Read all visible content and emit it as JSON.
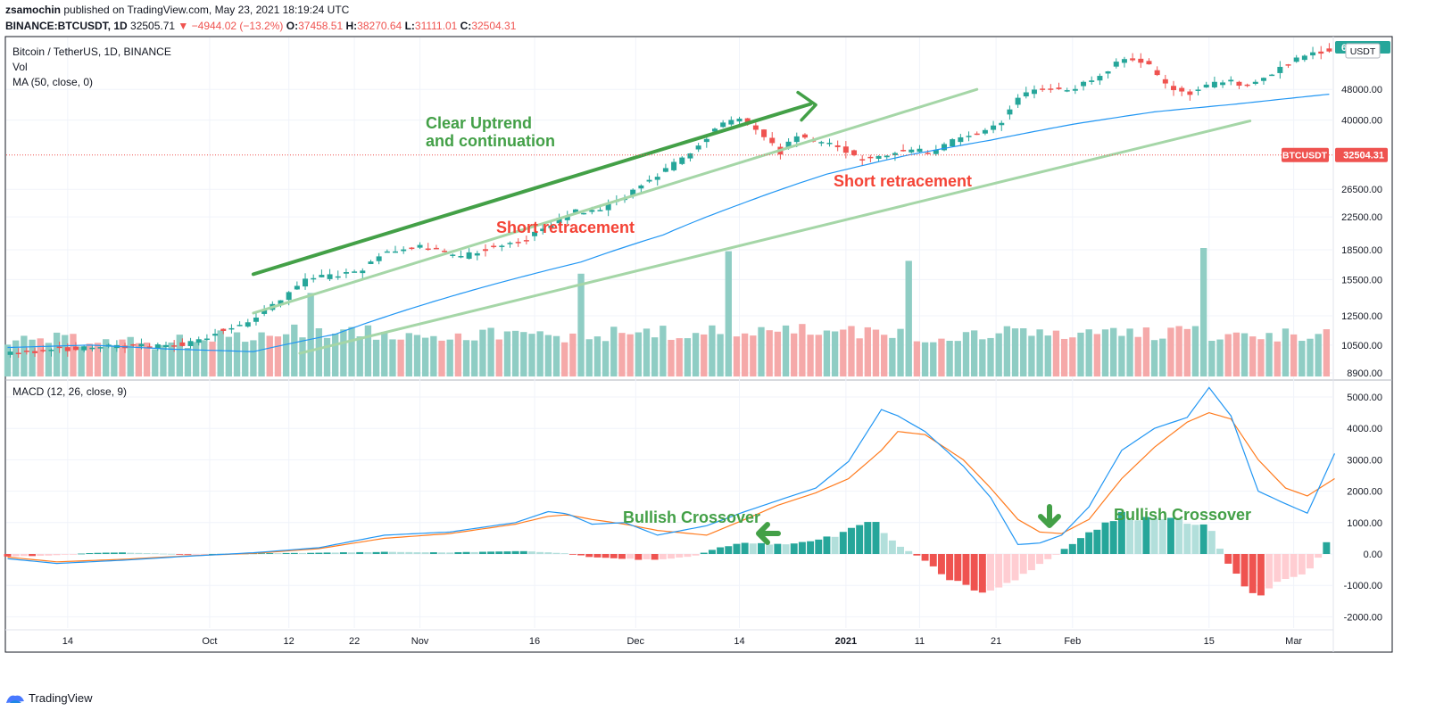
{
  "header": {
    "author": "zsamochin",
    "published_text": "published on TradingView.com, May 23, 2021 18:19:24 UTC",
    "symbol_line": "BINANCE:BTCUSDT, 1D",
    "last": "32505.71",
    "change": "−4944.02 (−13.2%)",
    "o_label": "O:",
    "o": "37458.51",
    "h_label": "H:",
    "h": "38270.64",
    "l_label": "L:",
    "l": "31111.01",
    "c_label": "C:",
    "c": "32504.31"
  },
  "footer": {
    "brand": "TradingView"
  },
  "chart_data": {
    "type": "candlestick",
    "title": "Bitcoin / TetherUS, 1D, BINANCE",
    "legend": [
      "Vol",
      "MA (50, close, 0)"
    ],
    "currency_badge": "USDT",
    "price_axis": {
      "scale": "log",
      "ticks": [
        "48000.00",
        "40000.00",
        "32504.31",
        "26500.00",
        "22500.00",
        "18500.00",
        "15500.00",
        "12500.00",
        "10500.00",
        "8900.00"
      ]
    },
    "last_price_label": {
      "symbol": "BTCUSDT",
      "price": "32504.31",
      "top_badge": "6"
    },
    "x_ticks": [
      "14",
      "Oct",
      "12",
      "22",
      "Nov",
      "16",
      "Dec",
      "14",
      "2021",
      "11",
      "21",
      "Feb",
      "15",
      "Mar"
    ],
    "price_path": [
      [
        0,
        10000
      ],
      [
        18,
        10250
      ],
      [
        30,
        10300
      ],
      [
        45,
        10450
      ],
      [
        55,
        10400
      ],
      [
        68,
        10600
      ],
      [
        78,
        11400
      ],
      [
        88,
        11900
      ],
      [
        96,
        13000
      ],
      [
        102,
        13800
      ],
      [
        110,
        15500
      ],
      [
        118,
        15800
      ],
      [
        130,
        16300
      ],
      [
        138,
        18300
      ],
      [
        148,
        18800
      ],
      [
        158,
        18800
      ],
      [
        166,
        17500
      ],
      [
        172,
        18200
      ],
      [
        180,
        19000
      ],
      [
        188,
        19300
      ],
      [
        198,
        21000
      ],
      [
        208,
        23200
      ],
      [
        218,
        23500
      ],
      [
        226,
        25000
      ],
      [
        234,
        27500
      ],
      [
        240,
        29000
      ],
      [
        250,
        32500
      ],
      [
        262,
        39000
      ],
      [
        270,
        40500
      ],
      [
        278,
        36500
      ],
      [
        284,
        33000
      ],
      [
        290,
        36500
      ],
      [
        298,
        35000
      ],
      [
        306,
        34000
      ],
      [
        312,
        32000
      ],
      [
        318,
        31500
      ],
      [
        326,
        33000
      ],
      [
        334,
        33500
      ],
      [
        340,
        33000
      ],
      [
        348,
        35500
      ],
      [
        356,
        37000
      ],
      [
        364,
        39000
      ],
      [
        372,
        46000
      ],
      [
        380,
        48500
      ],
      [
        390,
        48000
      ],
      [
        400,
        51000
      ],
      [
        408,
        56500
      ],
      [
        414,
        58000
      ],
      [
        420,
        54500
      ],
      [
        426,
        48500
      ],
      [
        434,
        46500
      ],
      [
        440,
        49000
      ],
      [
        448,
        50500
      ],
      [
        454,
        49000
      ],
      [
        462,
        52000
      ],
      [
        470,
        56000
      ],
      [
        478,
        59500
      ],
      [
        486,
        61000
      ]
    ],
    "ma50_path": [
      [
        0,
        10350
      ],
      [
        30,
        10500
      ],
      [
        60,
        10250
      ],
      [
        90,
        10100
      ],
      [
        120,
        11200
      ],
      [
        150,
        13200
      ],
      [
        180,
        15200
      ],
      [
        210,
        17200
      ],
      [
        240,
        20200
      ],
      [
        270,
        24500
      ],
      [
        300,
        29000
      ],
      [
        330,
        32500
      ],
      [
        360,
        35500
      ],
      [
        390,
        39000
      ],
      [
        420,
        42000
      ],
      [
        450,
        44000
      ],
      [
        486,
        46800
      ]
    ],
    "trendlines": [
      {
        "label": "Clear Uptrend and continuation",
        "color": "#43a047",
        "points": [
          [
            90,
            16000
          ],
          [
            294,
            44000
          ]
        ]
      },
      {
        "color": "#a5d6a7",
        "points": [
          [
            90,
            12700
          ],
          [
            355,
            48000
          ]
        ]
      },
      {
        "color": "#a5d6a7",
        "points": [
          [
            107,
            10000
          ],
          [
            455,
            39800
          ]
        ]
      }
    ],
    "volume_path": [
      [
        0,
        9
      ],
      [
        60,
        8
      ],
      [
        110,
        12
      ],
      [
        150,
        11
      ],
      [
        200,
        10
      ],
      [
        240,
        11
      ],
      [
        265,
        11
      ],
      [
        290,
        12
      ],
      [
        330,
        10
      ],
      [
        380,
        11
      ],
      [
        420,
        11
      ],
      [
        486,
        10
      ]
    ],
    "volume_spikes": [
      [
        111,
        26
      ],
      [
        209,
        32
      ],
      [
        264,
        39
      ],
      [
        329,
        36
      ],
      [
        372,
        15
      ],
      [
        437,
        40
      ]
    ],
    "macd": {
      "label": "MACD (12, 26, close, 9)",
      "axis_ticks": [
        "5000.00",
        "4000.00",
        "3000.00",
        "2000.00",
        "1000.00",
        "0.00",
        "-1000.00",
        "-2000.00"
      ],
      "macd_line": [
        [
          0,
          -150
        ],
        [
          18,
          -300
        ],
        [
          42,
          -200
        ],
        [
          66,
          -70
        ],
        [
          90,
          40
        ],
        [
          114,
          200
        ],
        [
          138,
          600
        ],
        [
          162,
          700
        ],
        [
          186,
          1000
        ],
        [
          198,
          1350
        ],
        [
          205,
          1280
        ],
        [
          214,
          950
        ],
        [
          226,
          1000
        ],
        [
          238,
          600
        ],
        [
          256,
          900
        ],
        [
          270,
          1350
        ],
        [
          282,
          1700
        ],
        [
          296,
          2100
        ],
        [
          308,
          2950
        ],
        [
          320,
          4600
        ],
        [
          326,
          4400
        ],
        [
          336,
          3900
        ],
        [
          350,
          2800
        ],
        [
          360,
          1800
        ],
        [
          370,
          300
        ],
        [
          378,
          350
        ],
        [
          386,
          600
        ],
        [
          396,
          1500
        ],
        [
          408,
          3300
        ],
        [
          420,
          4000
        ],
        [
          432,
          4350
        ],
        [
          440,
          5300
        ],
        [
          448,
          4400
        ],
        [
          458,
          2000
        ],
        [
          468,
          1600
        ],
        [
          476,
          1300
        ],
        [
          486,
          3200
        ]
      ],
      "signal_line": [
        [
          0,
          -100
        ],
        [
          18,
          -250
        ],
        [
          42,
          -170
        ],
        [
          66,
          -60
        ],
        [
          90,
          20
        ],
        [
          114,
          170
        ],
        [
          138,
          500
        ],
        [
          162,
          650
        ],
        [
          186,
          950
        ],
        [
          198,
          1200
        ],
        [
          205,
          1250
        ],
        [
          214,
          1100
        ],
        [
          226,
          950
        ],
        [
          238,
          750
        ],
        [
          256,
          600
        ],
        [
          270,
          1100
        ],
        [
          282,
          1550
        ],
        [
          296,
          1950
        ],
        [
          308,
          2400
        ],
        [
          320,
          3300
        ],
        [
          326,
          3900
        ],
        [
          336,
          3800
        ],
        [
          350,
          3000
        ],
        [
          360,
          2100
        ],
        [
          370,
          1100
        ],
        [
          378,
          700
        ],
        [
          386,
          650
        ],
        [
          396,
          1100
        ],
        [
          408,
          2400
        ],
        [
          420,
          3400
        ],
        [
          432,
          4200
        ],
        [
          440,
          4500
        ],
        [
          448,
          4300
        ],
        [
          458,
          3000
        ],
        [
          468,
          2100
        ],
        [
          476,
          1850
        ],
        [
          486,
          2400
        ]
      ],
      "histogram_path": [
        [
          0,
          -80
        ],
        [
          18,
          -40
        ],
        [
          30,
          30
        ],
        [
          42,
          50
        ],
        [
          66,
          -10
        ],
        [
          90,
          20
        ],
        [
          114,
          40
        ],
        [
          138,
          70
        ],
        [
          162,
          50
        ],
        [
          190,
          90
        ],
        [
          205,
          20
        ],
        [
          214,
          -100
        ],
        [
          238,
          -200
        ],
        [
          252,
          -50
        ],
        [
          260,
          200
        ],
        [
          270,
          350
        ],
        [
          282,
          300
        ],
        [
          296,
          420
        ],
        [
          306,
          650
        ],
        [
          316,
          1100
        ],
        [
          326,
          300
        ],
        [
          334,
          -100
        ],
        [
          344,
          -750
        ],
        [
          354,
          -1150
        ],
        [
          364,
          -1050
        ],
        [
          376,
          -450
        ],
        [
          386,
          100
        ],
        [
          396,
          650
        ],
        [
          408,
          1250
        ],
        [
          420,
          1050
        ],
        [
          432,
          1050
        ],
        [
          440,
          900
        ],
        [
          446,
          -200
        ],
        [
          456,
          -1350
        ],
        [
          466,
          -900
        ],
        [
          478,
          -450
        ],
        [
          486,
          900
        ]
      ]
    },
    "annotations": [
      {
        "text": "Clear Uptrend",
        "color": "#43a047"
      },
      {
        "text": "and continuation",
        "color": "#43a047"
      },
      {
        "text": "Short retracement",
        "color": "#f44336"
      },
      {
        "text": "Short retracement",
        "color": "#f44336"
      },
      {
        "text": "Bullish Crossover",
        "color": "#43a047"
      },
      {
        "text": "Bullish Crossover",
        "color": "#43a047"
      }
    ],
    "colors": {
      "up": "#26a69a",
      "down": "#ef5350",
      "vol_up": "#8fcdc4",
      "vol_down": "#f5a9a9",
      "ma": "#2196f3",
      "signal": "#ff7b1e",
      "macd": "#2196f3",
      "trend": "#43a047",
      "trend_light": "#a5d6a7",
      "grid": "#f0f3fa",
      "axis_text": "#131722"
    }
  }
}
